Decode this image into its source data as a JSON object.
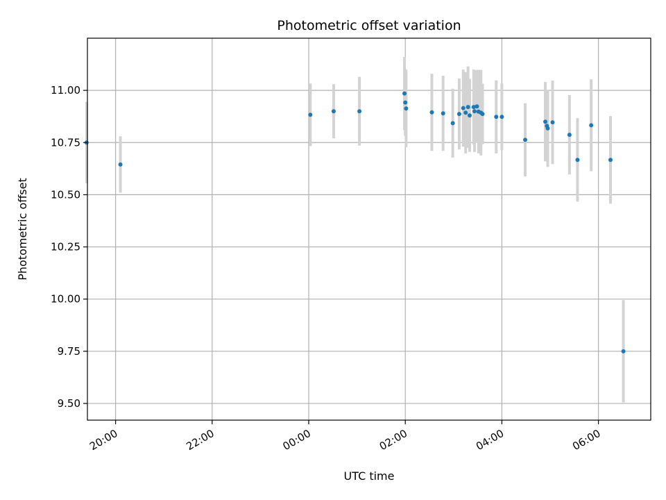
{
  "chart_data": {
    "type": "scatter",
    "title": "Photometric offset variation",
    "xlabel": "UTC time",
    "ylabel": "Photometric offset",
    "xlim": [
      "2000-01-01T19:25",
      "2000-01-02T07:05"
    ],
    "ylim": [
      9.42,
      11.25
    ],
    "x_ticks": [
      {
        "t": "2000-01-01T20:00",
        "label": "20:00"
      },
      {
        "t": "2000-01-01T22:00",
        "label": "22:00"
      },
      {
        "t": "2000-01-02T00:00",
        "label": "00:00"
      },
      {
        "t": "2000-01-02T02:00",
        "label": "02:00"
      },
      {
        "t": "2000-01-02T04:00",
        "label": "04:00"
      },
      {
        "t": "2000-01-02T06:00",
        "label": "06:00"
      }
    ],
    "y_ticks": [
      {
        "v": 9.5,
        "label": "9.50"
      },
      {
        "v": 9.75,
        "label": "9.75"
      },
      {
        "v": 10.0,
        "label": "10.00"
      },
      {
        "v": 10.25,
        "label": "10.25"
      },
      {
        "v": 10.5,
        "label": "10.50"
      },
      {
        "v": 10.75,
        "label": "10.75"
      },
      {
        "v": 11.0,
        "label": "11.00"
      }
    ],
    "grid": true,
    "marker_color": "#1f77b4",
    "errorbar_color": "#d3d3d3",
    "points": [
      {
        "t": "2000-01-01T19:24",
        "y": 10.75,
        "err": 0.195
      },
      {
        "t": "2000-01-01T20:06",
        "y": 10.645,
        "err": 0.135
      },
      {
        "t": "2000-01-02T00:02",
        "y": 10.883,
        "err": 0.15
      },
      {
        "t": "2000-01-02T00:31",
        "y": 10.9,
        "err": 0.13
      },
      {
        "t": "2000-01-02T01:03",
        "y": 10.9,
        "err": 0.165
      },
      {
        "t": "2000-01-02T01:59",
        "y": 10.985,
        "err": 0.175
      },
      {
        "t": "2000-01-02T02:00",
        "y": 10.942,
        "err": 0.16
      },
      {
        "t": "2000-01-02T02:01",
        "y": 10.913,
        "err": 0.185
      },
      {
        "t": "2000-01-02T02:33",
        "y": 10.895,
        "err": 0.185
      },
      {
        "t": "2000-01-02T02:47",
        "y": 10.89,
        "err": 0.18
      },
      {
        "t": "2000-01-02T02:59",
        "y": 10.843,
        "err": 0.165
      },
      {
        "t": "2000-01-02T03:07",
        "y": 10.887,
        "err": 0.17
      },
      {
        "t": "2000-01-02T03:12",
        "y": 10.915,
        "err": 0.185
      },
      {
        "t": "2000-01-02T03:15",
        "y": 10.893,
        "err": 0.195
      },
      {
        "t": "2000-01-02T03:18",
        "y": 10.92,
        "err": 0.195
      },
      {
        "t": "2000-01-02T03:20",
        "y": 10.88,
        "err": 0.175
      },
      {
        "t": "2000-01-02T03:25",
        "y": 10.92,
        "err": 0.18
      },
      {
        "t": "2000-01-02T03:26",
        "y": 10.9,
        "err": 0.195
      },
      {
        "t": "2000-01-02T03:29",
        "y": 10.923,
        "err": 0.175
      },
      {
        "t": "2000-01-02T03:31",
        "y": 10.898,
        "err": 0.2
      },
      {
        "t": "2000-01-02T03:34",
        "y": 10.893,
        "err": 0.205
      },
      {
        "t": "2000-01-02T03:36",
        "y": 10.887,
        "err": 0.145
      },
      {
        "t": "2000-01-02T03:53",
        "y": 10.873,
        "err": 0.175
      },
      {
        "t": "2000-01-02T04:00",
        "y": 10.873,
        "err": 0.16
      },
      {
        "t": "2000-01-02T04:29",
        "y": 10.763,
        "err": 0.175
      },
      {
        "t": "2000-01-02T04:54",
        "y": 10.85,
        "err": 0.19
      },
      {
        "t": "2000-01-02T04:56",
        "y": 10.83,
        "err": 0.17
      },
      {
        "t": "2000-01-02T04:57",
        "y": 10.818,
        "err": 0.185
      },
      {
        "t": "2000-01-02T05:03",
        "y": 10.847,
        "err": 0.2
      },
      {
        "t": "2000-01-02T05:24",
        "y": 10.787,
        "err": 0.19
      },
      {
        "t": "2000-01-02T05:34",
        "y": 10.667,
        "err": 0.2
      },
      {
        "t": "2000-01-02T05:51",
        "y": 10.833,
        "err": 0.22
      },
      {
        "t": "2000-01-02T06:15",
        "y": 10.667,
        "err": 0.21
      },
      {
        "t": "2000-01-02T06:31",
        "y": 9.75,
        "err": 0.245
      }
    ]
  }
}
